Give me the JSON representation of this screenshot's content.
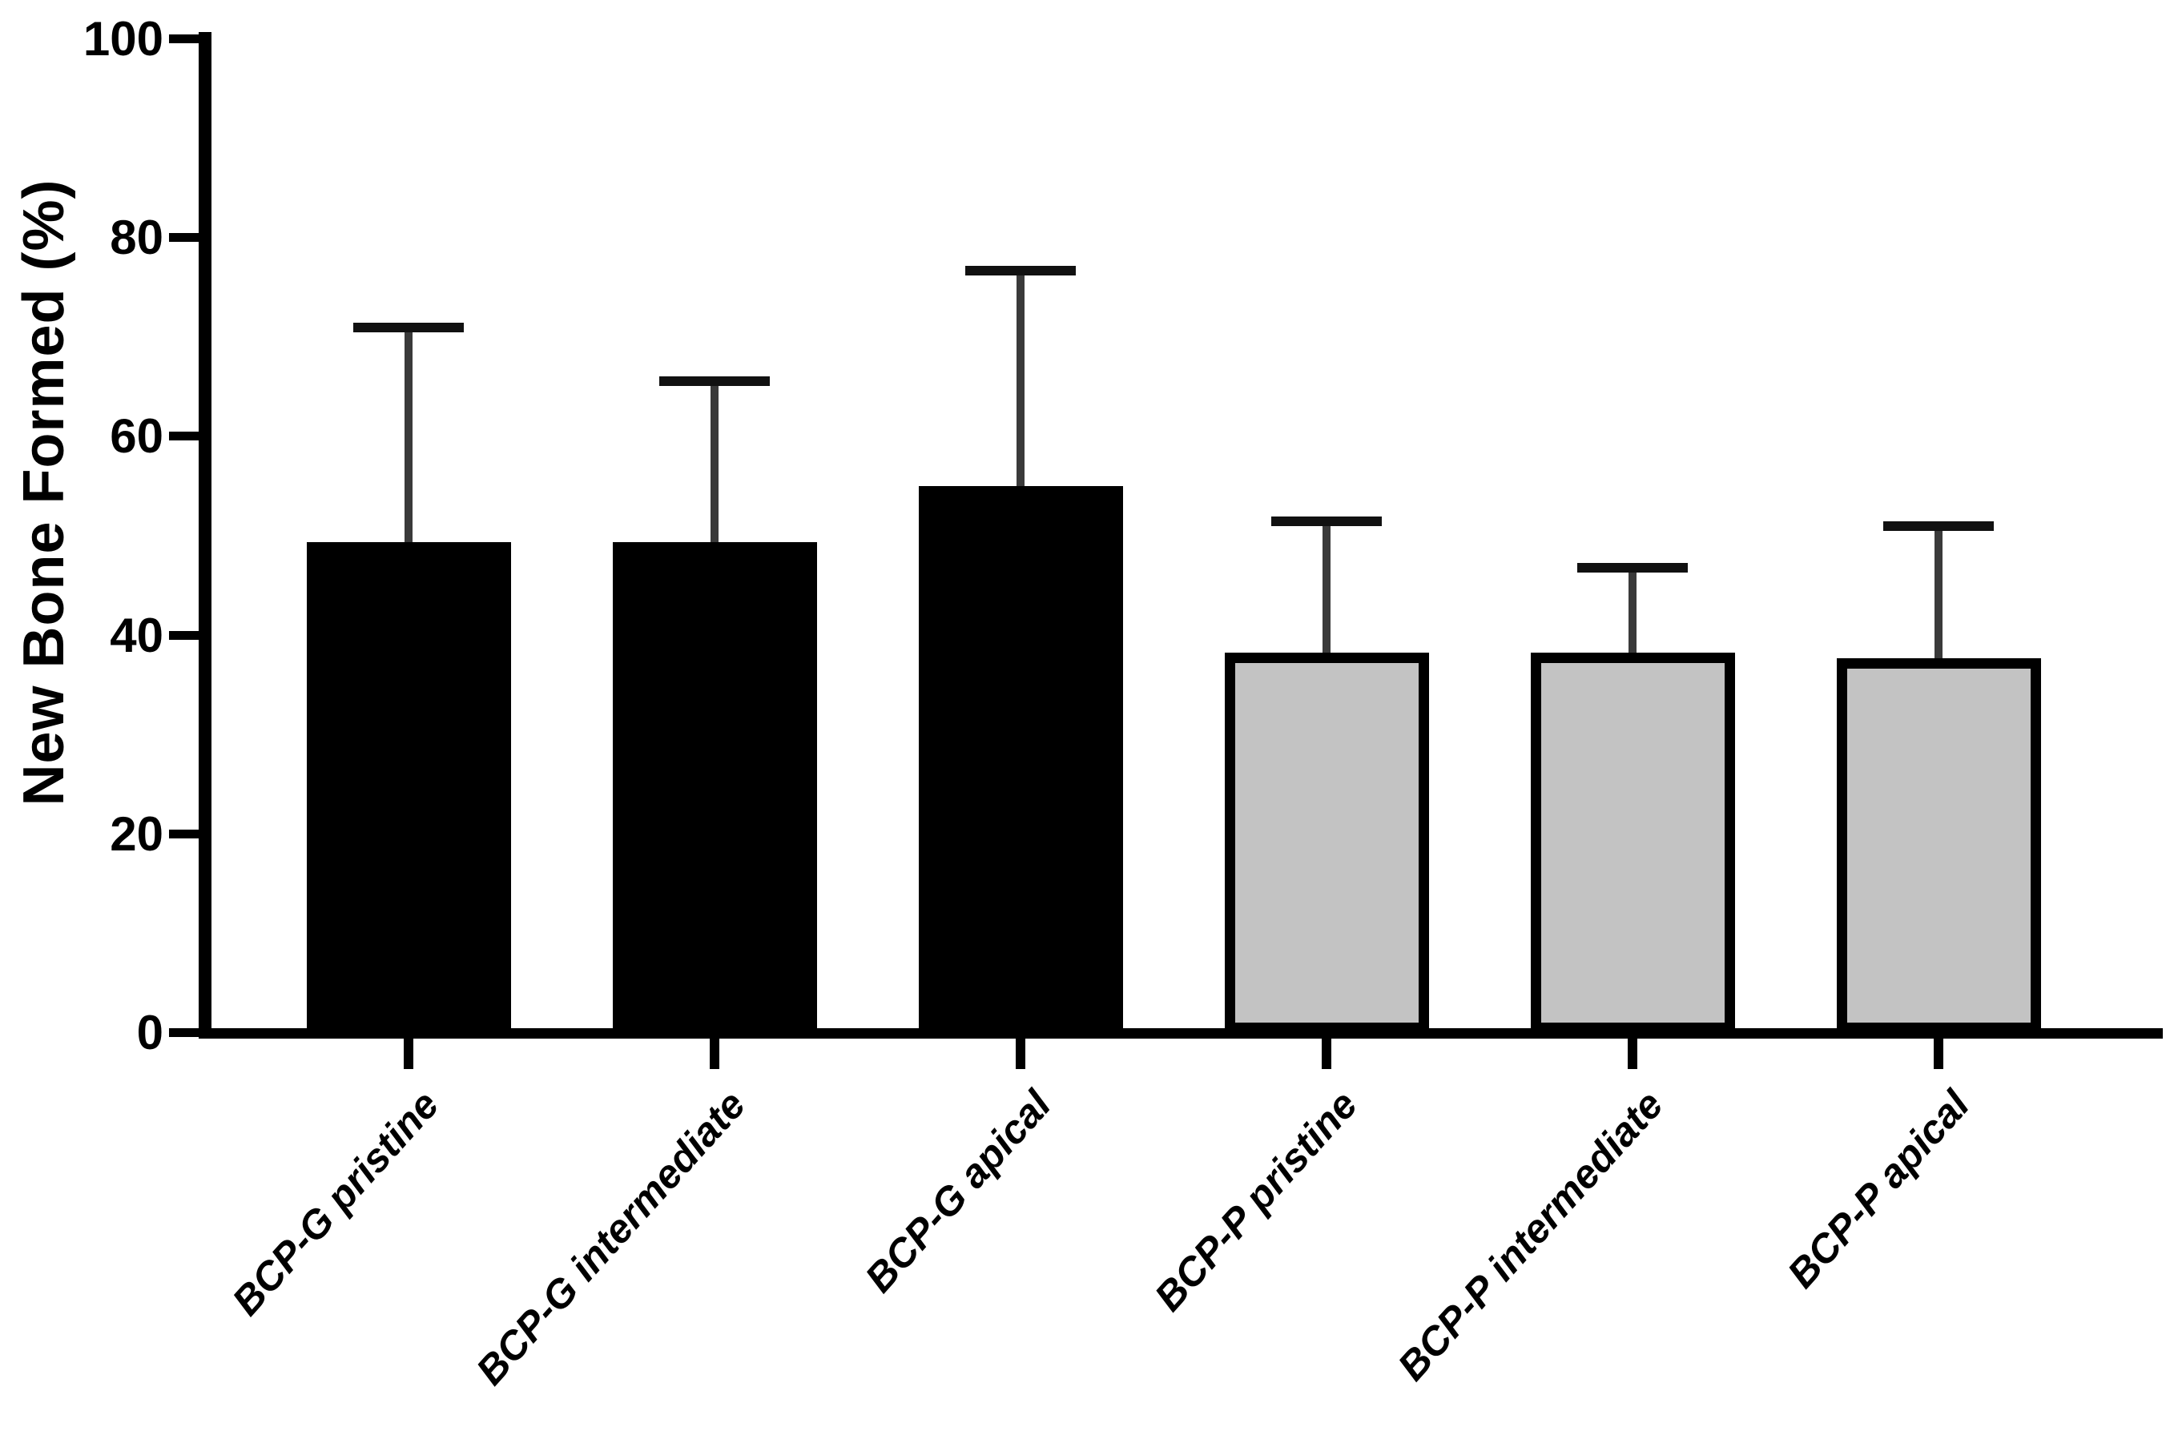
{
  "chart_data": {
    "type": "bar",
    "title": "",
    "xlabel": "",
    "ylabel": "New Bone Formed (%)",
    "ylim": [
      0,
      100
    ],
    "yticks": [
      0,
      20,
      40,
      60,
      80,
      100
    ],
    "grid": false,
    "legend": null,
    "categories": [
      "BCP-G pristine",
      "BCP-G intermediate",
      "BCP-G apical",
      "BCP-P pristine",
      "BCP-P intermediate",
      "BCP-P apical"
    ],
    "values": [
      49.4,
      49.4,
      55.0,
      38.3,
      38.3,
      37.7
    ],
    "errors_plus": [
      21.6,
      16.2,
      21.7,
      13.2,
      8.5,
      13.3
    ],
    "error_style": "upper-only",
    "bar_fill_colors": [
      "#000000",
      "#000000",
      "#000000",
      "#c3c3c3",
      "#c3c3c3",
      "#c3c3c3"
    ],
    "bar_border_color": "#000000",
    "error_stem_color": "#3a3a3a",
    "error_cap_color": "#111111",
    "axis_color": "#000000"
  }
}
